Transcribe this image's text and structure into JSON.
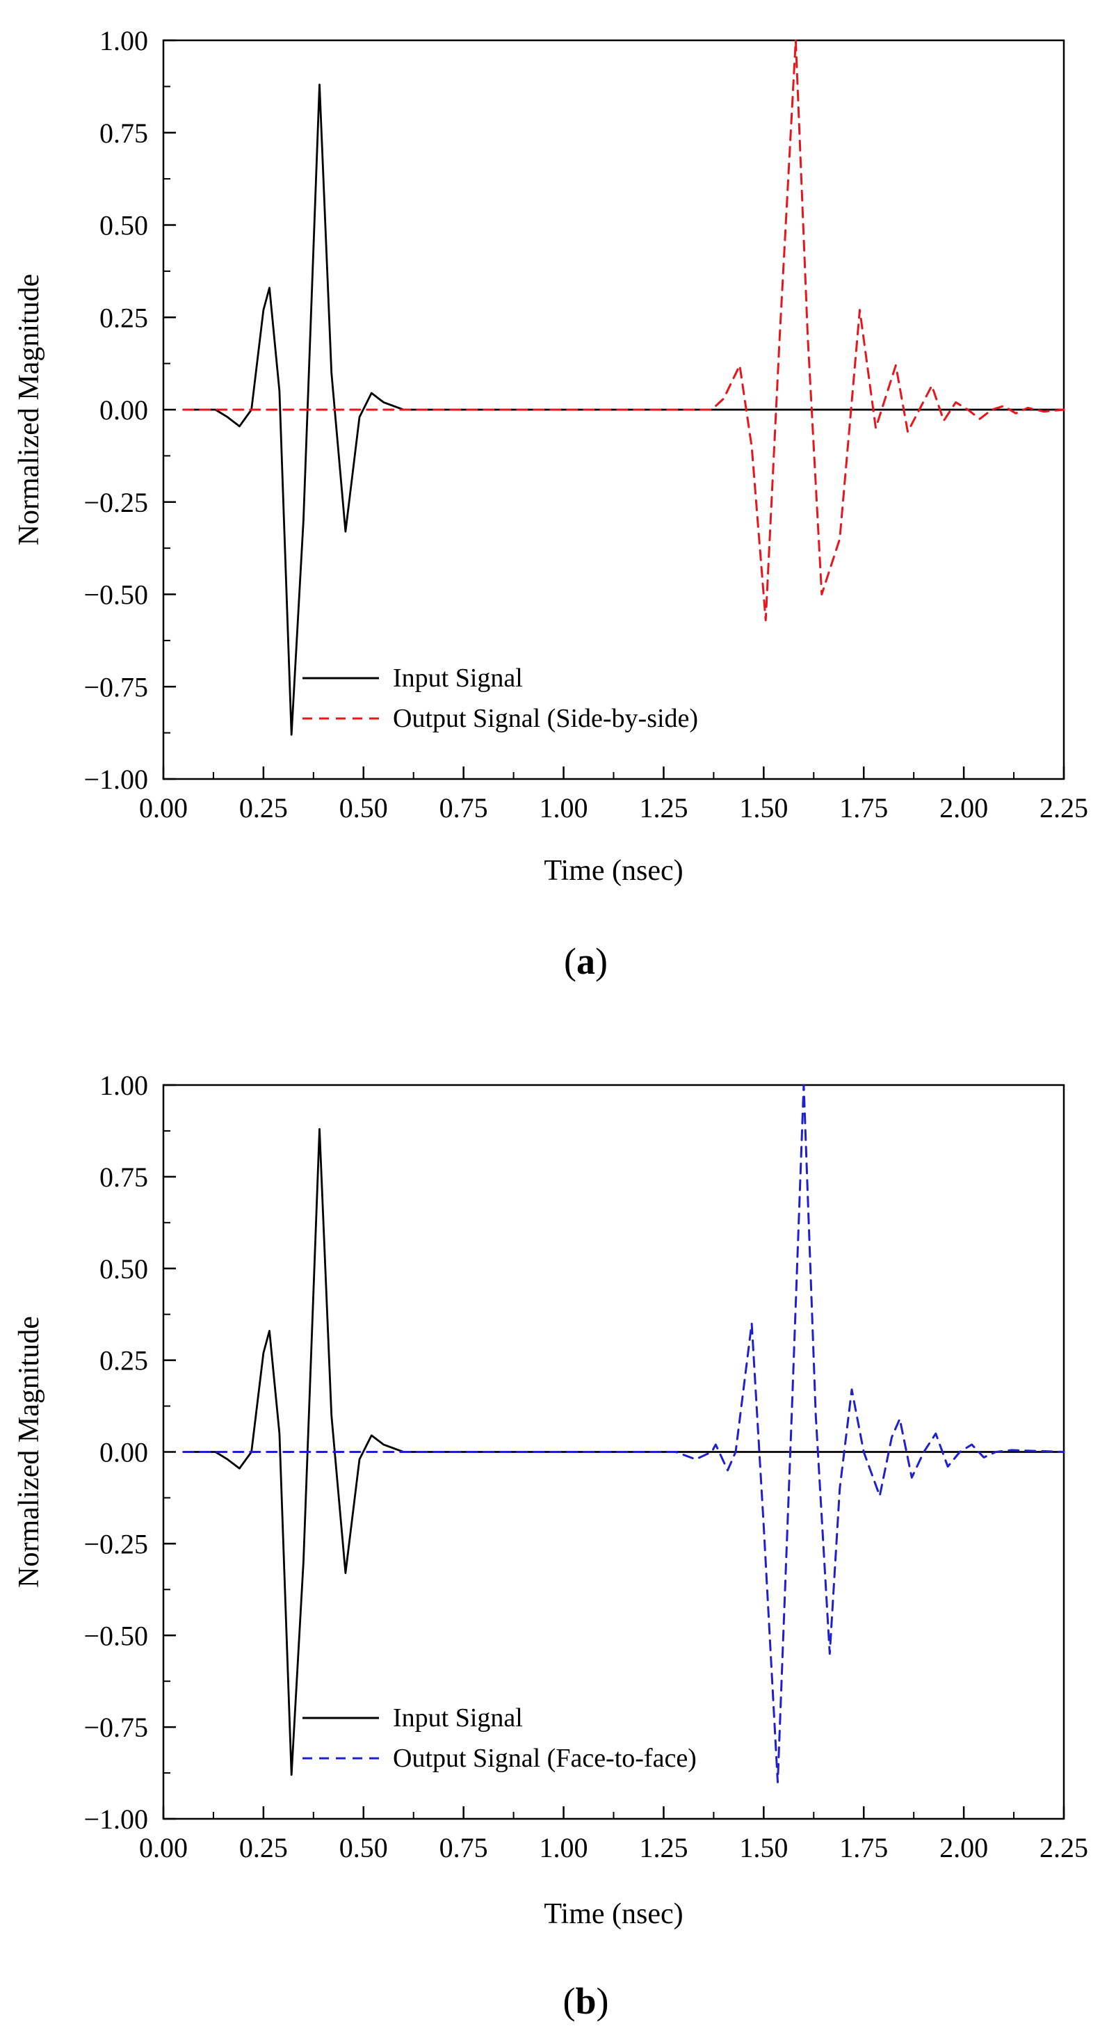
{
  "chart_data": [
    {
      "id": "a",
      "type": "line",
      "panel_label_open": "(",
      "panel_label_letter": "a",
      "panel_label_close": ")",
      "xlabel": "Time (nsec)",
      "ylabel": "Normalized Magnitude",
      "xlim": [
        0.0,
        2.25
      ],
      "ylim": [
        -1.0,
        1.0
      ],
      "xticks": [
        "0.00",
        "0.25",
        "0.50",
        "0.75",
        "1.00",
        "1.25",
        "1.50",
        "1.75",
        "2.00",
        "2.25"
      ],
      "yticks": [
        "1.00",
        "0.75",
        "0.50",
        "0.25",
        "0.00",
        "−0.25",
        "−0.50",
        "−0.75",
        "−1.00"
      ],
      "legend_position": "bottom-left",
      "series": [
        {
          "name": "Input Signal",
          "color": "#000000",
          "style": "solid",
          "x": [
            0.05,
            0.1,
            0.13,
            0.16,
            0.19,
            0.22,
            0.25,
            0.265,
            0.29,
            0.32,
            0.35,
            0.39,
            0.42,
            0.455,
            0.49,
            0.52,
            0.55,
            0.6,
            1.3,
            2.25
          ],
          "y": [
            0.0,
            0.0,
            0.0,
            -0.02,
            -0.045,
            0.0,
            0.27,
            0.33,
            0.05,
            -0.88,
            -0.3,
            0.88,
            0.1,
            -0.33,
            -0.02,
            0.045,
            0.02,
            0.0,
            0.0,
            0.0
          ]
        },
        {
          "name": "Output Signal (Side-by-side)",
          "color": "#e8161c",
          "style": "dashed",
          "x": [
            0.05,
            1.3,
            1.37,
            1.4,
            1.44,
            1.47,
            1.505,
            1.54,
            1.58,
            1.61,
            1.645,
            1.69,
            1.74,
            1.78,
            1.83,
            1.86,
            1.92,
            1.95,
            1.98,
            2.01,
            2.04,
            2.07,
            2.1,
            2.13,
            2.16,
            2.2,
            2.25
          ],
          "y": [
            0.0,
            0.0,
            0.0,
            0.03,
            0.12,
            -0.1,
            -0.57,
            0.2,
            1.0,
            0.2,
            -0.5,
            -0.35,
            0.27,
            -0.05,
            0.12,
            -0.06,
            0.065,
            -0.03,
            0.02,
            0.0,
            -0.025,
            0.0,
            0.01,
            -0.01,
            0.005,
            -0.005,
            0.0
          ]
        }
      ]
    },
    {
      "id": "b",
      "type": "line",
      "panel_label_open": "(",
      "panel_label_letter": "b",
      "panel_label_close": ")",
      "xlabel": "Time (nsec)",
      "ylabel": "Normalized Magnitude",
      "xlim": [
        0.0,
        2.25
      ],
      "ylim": [
        -1.0,
        1.0
      ],
      "xticks": [
        "0.00",
        "0.25",
        "0.50",
        "0.75",
        "1.00",
        "1.25",
        "1.50",
        "1.75",
        "2.00",
        "2.25"
      ],
      "yticks": [
        "1.00",
        "0.75",
        "0.50",
        "0.25",
        "0.00",
        "−0.25",
        "−0.50",
        "−0.75",
        "−1.00"
      ],
      "legend_position": "bottom-left",
      "series": [
        {
          "name": "Input Signal",
          "color": "#000000",
          "style": "solid",
          "x": [
            0.05,
            0.1,
            0.13,
            0.16,
            0.19,
            0.22,
            0.25,
            0.265,
            0.29,
            0.32,
            0.35,
            0.39,
            0.42,
            0.455,
            0.49,
            0.52,
            0.55,
            0.6,
            1.3,
            2.25
          ],
          "y": [
            0.0,
            0.0,
            0.0,
            -0.02,
            -0.045,
            0.0,
            0.27,
            0.33,
            0.05,
            -0.88,
            -0.3,
            0.88,
            0.1,
            -0.33,
            -0.02,
            0.045,
            0.02,
            0.0,
            0.0,
            0.0
          ]
        },
        {
          "name": "Output Signal (Face-to-face)",
          "color": "#1f1fd0",
          "style": "dashed",
          "x": [
            0.05,
            1.28,
            1.33,
            1.37,
            1.38,
            1.41,
            1.43,
            1.47,
            1.5,
            1.535,
            1.57,
            1.6,
            1.63,
            1.665,
            1.69,
            1.72,
            1.75,
            1.79,
            1.82,
            1.84,
            1.87,
            1.9,
            1.93,
            1.96,
            1.99,
            2.02,
            2.05,
            2.08,
            2.12,
            2.25
          ],
          "y": [
            0.0,
            0.0,
            -0.02,
            0.0,
            0.02,
            -0.05,
            0.0,
            0.35,
            -0.2,
            -0.9,
            0.1,
            1.0,
            0.1,
            -0.55,
            -0.1,
            0.17,
            0.0,
            -0.12,
            0.04,
            0.09,
            -0.07,
            0.0,
            0.05,
            -0.04,
            0.0,
            0.02,
            -0.015,
            0.0,
            0.005,
            0.0
          ]
        }
      ]
    }
  ]
}
